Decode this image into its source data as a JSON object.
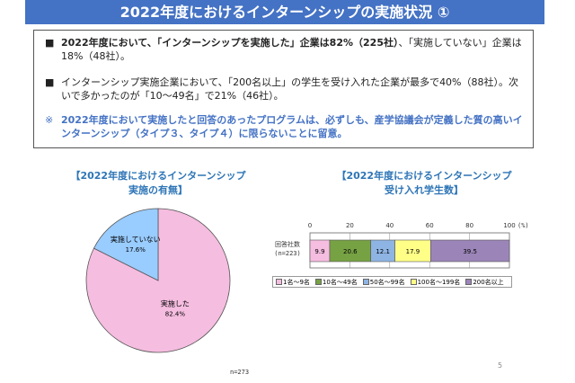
{
  "header": {
    "title": "2022年度におけるインターンシップの実施状況 ①"
  },
  "summary": {
    "bullet_marker": "■",
    "bullet1_bold": "2022年度において、「インターンシップを実施した」企業は82%（225社）",
    "bullet1_rest": "、「実施していない」企業は18%（48社）。",
    "bullet2": "インターンシップ実施企業において、「200名以上」の学生を受け入れた企業が最多で40%（88社）。次いで多かったのが「10～49名」で21%（46社）。",
    "note_marker": "※",
    "note": "2022年度において実施したと回答のあったプログラムは、必ずしも、産学協議会が定義した質の高いインターンシップ（タイプ３、タイプ４）に限らないことに留意。"
  },
  "chart_data": [
    {
      "type": "pie",
      "title_line1": "【2022年度におけるインターンシップ",
      "title_line2": "実施の有無】",
      "slices": [
        {
          "label": "実施した",
          "value": 82.4,
          "value_label": "82.4%",
          "color": "#f5bde0"
        },
        {
          "label": "実施していない",
          "value": 17.6,
          "value_label": "17.6%",
          "color": "#99ccff"
        }
      ],
      "note": "n=273"
    },
    {
      "type": "bar",
      "orientation": "horizontal-stacked",
      "title_line1": "【2022年度におけるインターンシップ",
      "title_line2": "受け入れ学生数】",
      "category": "回答社数",
      "category_sub": "(n=223)",
      "xlim": [
        0,
        100
      ],
      "ticks": [
        "0",
        "20",
        "40",
        "60",
        "80",
        "100"
      ],
      "unit": "(%)",
      "grid": true,
      "legend": "bottom",
      "series": [
        {
          "name": "1名～9名",
          "value": 9.9,
          "label": "9.9",
          "color": "#f5bde0"
        },
        {
          "name": "10名～49名",
          "value": 20.6,
          "label": "20.6",
          "color": "#77a244"
        },
        {
          "name": "50名～99名",
          "value": 12.1,
          "label": "12.1",
          "color": "#8eb4e3"
        },
        {
          "name": "100名～199名",
          "value": 17.9,
          "label": "17.9",
          "color": "#ffff88"
        },
        {
          "name": "200名以上",
          "value": 39.5,
          "label": "39.5",
          "color": "#9b85b8"
        }
      ]
    }
  ],
  "footer": {
    "page_number": "5"
  }
}
